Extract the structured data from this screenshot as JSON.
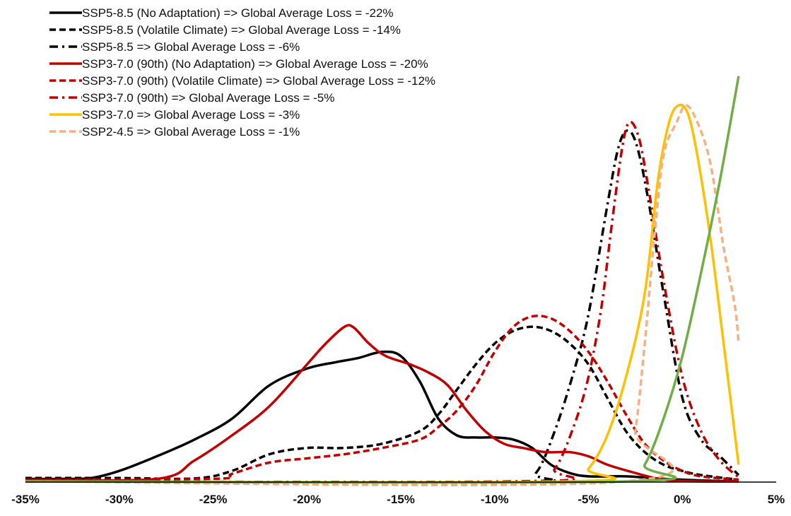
{
  "chart_data": {
    "type": "line",
    "title": "",
    "xlabel": "",
    "ylabel": "",
    "xlim": [
      -35,
      5
    ],
    "x_ticks": [
      "-35%",
      "-30%",
      "-25%",
      "-20%",
      "-15%",
      "-10%",
      "-5%",
      "0%",
      "5%"
    ],
    "x_tick_values": [
      -35,
      -30,
      -25,
      -20,
      -15,
      -10,
      -5,
      0,
      5
    ],
    "y_axis_visible": false,
    "grid": false,
    "legend_position": "top-left",
    "series": [
      {
        "name": "SSP5-8.5 (No Adaptation) => Global Average Loss = -22%",
        "color": "#000000",
        "dash": "solid",
        "points": [
          [
            -35,
            0.006
          ],
          [
            -33,
            0.006
          ],
          [
            -31.5,
            0.008
          ],
          [
            -30,
            0.025
          ],
          [
            -28,
            0.06
          ],
          [
            -26,
            0.1
          ],
          [
            -24,
            0.15
          ],
          [
            -22,
            0.23
          ],
          [
            -20,
            0.27
          ],
          [
            -18.5,
            0.285
          ],
          [
            -17.3,
            0.295
          ],
          [
            -16,
            0.31
          ],
          [
            -15,
            0.3
          ],
          [
            -14,
            0.24
          ],
          [
            -13,
            0.15
          ],
          [
            -12,
            0.11
          ],
          [
            -11,
            0.105
          ],
          [
            -10,
            0.105
          ],
          [
            -9,
            0.1
          ],
          [
            -8,
            0.08
          ],
          [
            -7,
            0.04
          ],
          [
            -6,
            0.02
          ],
          [
            -5,
            0.012
          ],
          [
            -3,
            0.012
          ],
          [
            -1,
            0.006
          ],
          [
            1,
            0.002
          ],
          [
            3,
            0
          ]
        ]
      },
      {
        "name": "SSP5-8.5 (Volatile Climate) => Global Average Loss = -14%",
        "color": "#000000",
        "dash": "dashed",
        "points": [
          [
            -35,
            0.008
          ],
          [
            -30,
            0.008
          ],
          [
            -26,
            0.007
          ],
          [
            -24,
            0.025
          ],
          [
            -22,
            0.065
          ],
          [
            -20,
            0.08
          ],
          [
            -18,
            0.08
          ],
          [
            -16,
            0.09
          ],
          [
            -14,
            0.12
          ],
          [
            -13,
            0.16
          ],
          [
            -12,
            0.22
          ],
          [
            -11,
            0.28
          ],
          [
            -10,
            0.33
          ],
          [
            -9,
            0.36
          ],
          [
            -8,
            0.37
          ],
          [
            -7,
            0.36
          ],
          [
            -6,
            0.33
          ],
          [
            -5,
            0.28
          ],
          [
            -4,
            0.2
          ],
          [
            -3,
            0.12
          ],
          [
            -2,
            0.07
          ],
          [
            -1,
            0.04
          ],
          [
            0,
            0.025
          ],
          [
            1,
            0.015
          ],
          [
            3,
            0.004
          ]
        ]
      },
      {
        "name": "SSP5-8.5 => Global Average Loss = -6%",
        "color": "#000000",
        "dash": "dashdot",
        "points": [
          [
            -35,
            0
          ],
          [
            -9,
            0
          ],
          [
            -7.8,
            0.02
          ],
          [
            -6.8,
            0.12
          ],
          [
            -5.8,
            0.26
          ],
          [
            -5,
            0.4
          ],
          [
            -4,
            0.66
          ],
          [
            -3.4,
            0.8
          ],
          [
            -2.9,
            0.84
          ],
          [
            -2.4,
            0.8
          ],
          [
            -1.8,
            0.67
          ],
          [
            -1,
            0.45
          ],
          [
            0,
            0.2
          ],
          [
            1,
            0.1
          ],
          [
            2,
            0.06
          ],
          [
            3,
            0.015
          ]
        ]
      },
      {
        "name": "SSP3-7.0 (90th) (No Adaptation) => Global Average Loss = -20%",
        "color": "#c00000",
        "dash": "solid",
        "points": [
          [
            -35,
            0.004
          ],
          [
            -28,
            0.006
          ],
          [
            -26,
            0.05
          ],
          [
            -24,
            0.11
          ],
          [
            -22,
            0.18
          ],
          [
            -20,
            0.28
          ],
          [
            -19,
            0.33
          ],
          [
            -18,
            0.37
          ],
          [
            -17.5,
            0.368
          ],
          [
            -16.7,
            0.33
          ],
          [
            -15.8,
            0.3
          ],
          [
            -14.5,
            0.28
          ],
          [
            -13.5,
            0.26
          ],
          [
            -12.5,
            0.23
          ],
          [
            -11.5,
            0.17
          ],
          [
            -10.5,
            0.12
          ],
          [
            -9.5,
            0.09
          ],
          [
            -8.5,
            0.08
          ],
          [
            -7.3,
            0.07
          ],
          [
            -6,
            0.07
          ],
          [
            -5,
            0.06
          ],
          [
            -4,
            0.04
          ],
          [
            -2.5,
            0.02
          ],
          [
            -1,
            0.004
          ],
          [
            1,
            0
          ],
          [
            3,
            0
          ]
        ]
      },
      {
        "name": "SSP3-7.0 (90th) (Volatile Climate) => Global Average Loss = -12%",
        "color": "#c00000",
        "dash": "dashed",
        "points": [
          [
            -35,
            0.004
          ],
          [
            -25,
            0.006
          ],
          [
            -24,
            0.018
          ],
          [
            -22,
            0.045
          ],
          [
            -20,
            0.055
          ],
          [
            -18,
            0.065
          ],
          [
            -16,
            0.08
          ],
          [
            -14,
            0.1
          ],
          [
            -13,
            0.13
          ],
          [
            -12,
            0.17
          ],
          [
            -11,
            0.23
          ],
          [
            -10,
            0.31
          ],
          [
            -9,
            0.37
          ],
          [
            -8,
            0.395
          ],
          [
            -7,
            0.39
          ],
          [
            -6,
            0.36
          ],
          [
            -5,
            0.31
          ],
          [
            -4,
            0.24
          ],
          [
            -3,
            0.16
          ],
          [
            -2,
            0.09
          ],
          [
            -1,
            0.05
          ],
          [
            0,
            0.025
          ],
          [
            1,
            0.012
          ],
          [
            3,
            0.004
          ]
        ]
      },
      {
        "name": "SSP3-7.0 (90th) => Global Average Loss = -5%",
        "color": "#c00000",
        "dash": "dashdot",
        "points": [
          [
            -35,
            0
          ],
          [
            -8,
            0
          ],
          [
            -6.8,
            0.03
          ],
          [
            -5.8,
            0.13
          ],
          [
            -5,
            0.25
          ],
          [
            -4.3,
            0.42
          ],
          [
            -3.8,
            0.6
          ],
          [
            -3.2,
            0.8
          ],
          [
            -2.8,
            0.86
          ],
          [
            -2.3,
            0.82
          ],
          [
            -1.8,
            0.7
          ],
          [
            -1,
            0.48
          ],
          [
            0,
            0.25
          ],
          [
            1,
            0.12
          ],
          [
            2,
            0.05
          ],
          [
            3,
            0.01
          ]
        ]
      },
      {
        "name": "SSP3-7.0 => Global Average Loss = -3%",
        "color": "#ffc000",
        "dash": "solid",
        "points": [
          [
            -35,
            0
          ],
          [
            -6,
            0
          ],
          [
            -5,
            0.03
          ],
          [
            -4,
            0.11
          ],
          [
            -3,
            0.25
          ],
          [
            -2,
            0.45
          ],
          [
            -1.3,
            0.72
          ],
          [
            -0.7,
            0.86
          ],
          [
            -0.2,
            0.9
          ],
          [
            0.3,
            0.88
          ],
          [
            0.8,
            0.78
          ],
          [
            1.5,
            0.58
          ],
          [
            2.2,
            0.33
          ],
          [
            3,
            0.04
          ]
        ]
      },
      {
        "name": "SSP2-4.5 => Global Average Loss = -1%",
        "color": "#f4b183",
        "dash": "dashed",
        "points": [
          [
            -35,
            0
          ],
          [
            -3,
            0
          ],
          [
            -2.5,
            0.12
          ],
          [
            -2,
            0.33
          ],
          [
            -1.5,
            0.58
          ],
          [
            -1,
            0.78
          ],
          [
            -0.3,
            0.86
          ],
          [
            0.2,
            0.9
          ],
          [
            0.8,
            0.86
          ],
          [
            1.5,
            0.76
          ],
          [
            2.2,
            0.56
          ],
          [
            2.8,
            0.42
          ],
          [
            3,
            0.33
          ]
        ]
      },
      {
        "color": "#70ad47",
        "dash": "solid",
        "points": [
          [
            -35,
            0
          ],
          [
            -3,
            0
          ],
          [
            -2,
            0.04
          ],
          [
            -1,
            0.15
          ],
          [
            0,
            0.3
          ],
          [
            1,
            0.5
          ],
          [
            2,
            0.72
          ],
          [
            3,
            0.97
          ]
        ]
      }
    ]
  }
}
